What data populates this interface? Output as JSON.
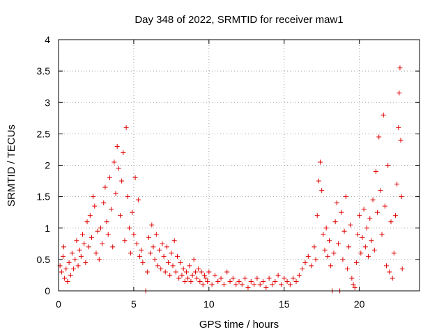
{
  "chart_data": {
    "type": "scatter",
    "title": "Day 348 of 2022, SRMTID for receiver maw1",
    "xlabel": "GPS time / hours",
    "ylabel": "SRMTID / TECUs",
    "xlim": [
      0,
      24
    ],
    "ylim": [
      0,
      4
    ],
    "xticks": [
      "0",
      "5",
      "10",
      "15",
      "20"
    ],
    "yticks": [
      "0",
      "0.5",
      "1",
      "1.5",
      "2",
      "2.5",
      "3",
      "3.5",
      "4"
    ],
    "grid": true,
    "marker": "+",
    "series_color": "#e00000",
    "series": [
      {
        "name": "maw1",
        "points": [
          [
            0.1,
            0.4
          ],
          [
            0.2,
            0.3
          ],
          [
            0.3,
            0.55
          ],
          [
            0.35,
            0.7
          ],
          [
            0.4,
            0.2
          ],
          [
            0.5,
            0.35
          ],
          [
            0.6,
            0.15
          ],
          [
            0.7,
            0.45
          ],
          [
            0.8,
            0.25
          ],
          [
            0.9,
            0.6
          ],
          [
            1.0,
            0.35
          ],
          [
            1.1,
            0.5
          ],
          [
            1.2,
            0.8
          ],
          [
            1.3,
            0.4
          ],
          [
            1.4,
            0.65
          ],
          [
            1.5,
            0.55
          ],
          [
            1.6,
            0.9
          ],
          [
            1.7,
            0.75
          ],
          [
            1.8,
            0.45
          ],
          [
            1.9,
            1.1
          ],
          [
            2.0,
            0.7
          ],
          [
            2.1,
            1.2
          ],
          [
            2.2,
            0.85
          ],
          [
            2.3,
            1.5
          ],
          [
            2.4,
            1.35
          ],
          [
            2.5,
            0.6
          ],
          [
            2.6,
            0.95
          ],
          [
            2.7,
            0.5
          ],
          [
            2.8,
            1.0
          ],
          [
            2.9,
            0.75
          ],
          [
            3.0,
            1.4
          ],
          [
            3.1,
            1.65
          ],
          [
            3.2,
            1.1
          ],
          [
            3.3,
            0.9
          ],
          [
            3.4,
            1.8
          ],
          [
            3.5,
            1.3
          ],
          [
            3.6,
            0.7
          ],
          [
            3.7,
            2.05
          ],
          [
            3.8,
            1.55
          ],
          [
            3.9,
            2.3
          ],
          [
            4.0,
            1.95
          ],
          [
            4.1,
            1.2
          ],
          [
            4.2,
            1.75
          ],
          [
            4.3,
            2.2
          ],
          [
            4.4,
            0.8
          ],
          [
            4.5,
            2.6
          ],
          [
            4.6,
            1.5
          ],
          [
            4.7,
            1.0
          ],
          [
            4.8,
            0.6
          ],
          [
            4.9,
            1.25
          ],
          [
            5.0,
            0.9
          ],
          [
            5.1,
            1.8
          ],
          [
            5.2,
            0.75
          ],
          [
            5.3,
            1.45
          ],
          [
            5.4,
            0.55
          ],
          [
            5.5,
            0.65
          ],
          [
            5.6,
            0.45
          ],
          [
            5.8,
            0.0
          ],
          [
            5.9,
            0.3
          ],
          [
            6.0,
            0.85
          ],
          [
            6.1,
            0.6
          ],
          [
            6.2,
            1.05
          ],
          [
            6.3,
            0.7
          ],
          [
            6.4,
            0.5
          ],
          [
            6.5,
            0.9
          ],
          [
            6.6,
            0.4
          ],
          [
            6.7,
            0.65
          ],
          [
            6.8,
            0.35
          ],
          [
            6.9,
            0.75
          ],
          [
            7.0,
            0.55
          ],
          [
            7.1,
            0.3
          ],
          [
            7.2,
            0.7
          ],
          [
            7.3,
            0.45
          ],
          [
            7.4,
            0.25
          ],
          [
            7.5,
            0.6
          ],
          [
            7.6,
            0.4
          ],
          [
            7.7,
            0.8
          ],
          [
            7.8,
            0.3
          ],
          [
            7.9,
            0.55
          ],
          [
            8.0,
            0.2
          ],
          [
            8.1,
            0.45
          ],
          [
            8.2,
            0.25
          ],
          [
            8.3,
            0.35
          ],
          [
            8.4,
            0.15
          ],
          [
            8.5,
            0.3
          ],
          [
            8.6,
            0.2
          ],
          [
            8.7,
            0.4
          ],
          [
            8.8,
            0.15
          ],
          [
            8.9,
            0.25
          ],
          [
            9.0,
            0.5
          ],
          [
            9.1,
            0.3
          ],
          [
            9.2,
            0.2
          ],
          [
            9.3,
            0.35
          ],
          [
            9.4,
            0.15
          ],
          [
            9.5,
            0.3
          ],
          [
            9.6,
            0.1
          ],
          [
            9.7,
            0.25
          ],
          [
            9.8,
            0.2
          ],
          [
            9.9,
            0.15
          ],
          [
            10.0,
            0.3
          ],
          [
            10.2,
            0.1
          ],
          [
            10.4,
            0.25
          ],
          [
            10.6,
            0.15
          ],
          [
            10.8,
            0.2
          ],
          [
            11.0,
            0.1
          ],
          [
            11.2,
            0.3
          ],
          [
            11.4,
            0.15
          ],
          [
            11.6,
            0.2
          ],
          [
            11.8,
            0.1
          ],
          [
            12.0,
            0.15
          ],
          [
            12.2,
            0.1
          ],
          [
            12.4,
            0.2
          ],
          [
            12.6,
            0.05
          ],
          [
            12.8,
            0.15
          ],
          [
            13.0,
            0.1
          ],
          [
            13.2,
            0.2
          ],
          [
            13.4,
            0.1
          ],
          [
            13.6,
            0.15
          ],
          [
            13.8,
            0.05
          ],
          [
            14.0,
            0.2
          ],
          [
            14.2,
            0.1
          ],
          [
            14.4,
            0.15
          ],
          [
            14.6,
            0.25
          ],
          [
            14.8,
            0.1
          ],
          [
            15.0,
            0.2
          ],
          [
            15.2,
            0.15
          ],
          [
            15.4,
            0.1
          ],
          [
            15.6,
            0.2
          ],
          [
            15.8,
            0.15
          ],
          [
            16.0,
            0.25
          ],
          [
            16.2,
            0.35
          ],
          [
            16.4,
            0.45
          ],
          [
            16.6,
            0.55
          ],
          [
            16.8,
            0.4
          ],
          [
            17.0,
            0.7
          ],
          [
            17.1,
            0.5
          ],
          [
            17.2,
            1.2
          ],
          [
            17.3,
            1.75
          ],
          [
            17.4,
            2.05
          ],
          [
            17.5,
            1.6
          ],
          [
            17.6,
            0.9
          ],
          [
            17.7,
            0.65
          ],
          [
            17.8,
            1.0
          ],
          [
            17.9,
            0.55
          ],
          [
            18.0,
            0.8
          ],
          [
            18.1,
            0.4
          ],
          [
            18.2,
            0.0
          ],
          [
            18.3,
            0.6
          ],
          [
            18.4,
            1.1
          ],
          [
            18.5,
            1.4
          ],
          [
            18.6,
            0.75
          ],
          [
            18.7,
            0.0
          ],
          [
            18.8,
            1.25
          ],
          [
            18.9,
            0.5
          ],
          [
            19.0,
            0.95
          ],
          [
            19.1,
            1.5
          ],
          [
            19.2,
            0.35
          ],
          [
            19.3,
            0.7
          ],
          [
            19.4,
            1.05
          ],
          [
            19.5,
            0.2
          ],
          [
            19.6,
            0.1
          ],
          [
            19.7,
            0.05
          ],
          [
            19.8,
            0.45
          ],
          [
            19.9,
            0.9
          ],
          [
            20.0,
            1.2
          ],
          [
            20.1,
            0.6
          ],
          [
            20.2,
            0.85
          ],
          [
            20.3,
            1.3
          ],
          [
            20.4,
            0.7
          ],
          [
            20.5,
            1.0
          ],
          [
            20.6,
            0.55
          ],
          [
            20.7,
            1.15
          ],
          [
            20.8,
            0.8
          ],
          [
            20.9,
            1.45
          ],
          [
            21.0,
            0.65
          ],
          [
            21.1,
            1.9
          ],
          [
            21.2,
            1.25
          ],
          [
            21.3,
            2.45
          ],
          [
            21.4,
            1.6
          ],
          [
            21.5,
            0.9
          ],
          [
            21.6,
            2.8
          ],
          [
            21.7,
            1.35
          ],
          [
            21.8,
            0.4
          ],
          [
            21.9,
            2.0
          ],
          [
            22.0,
            0.3
          ],
          [
            22.1,
            1.1
          ],
          [
            22.2,
            0.2
          ],
          [
            22.3,
            0.6
          ],
          [
            22.4,
            1.2
          ],
          [
            22.5,
            1.7
          ],
          [
            22.6,
            2.6
          ],
          [
            22.65,
            3.15
          ],
          [
            22.7,
            3.55
          ],
          [
            22.75,
            2.4
          ],
          [
            22.8,
            1.5
          ],
          [
            22.85,
            0.35
          ]
        ]
      }
    ]
  }
}
